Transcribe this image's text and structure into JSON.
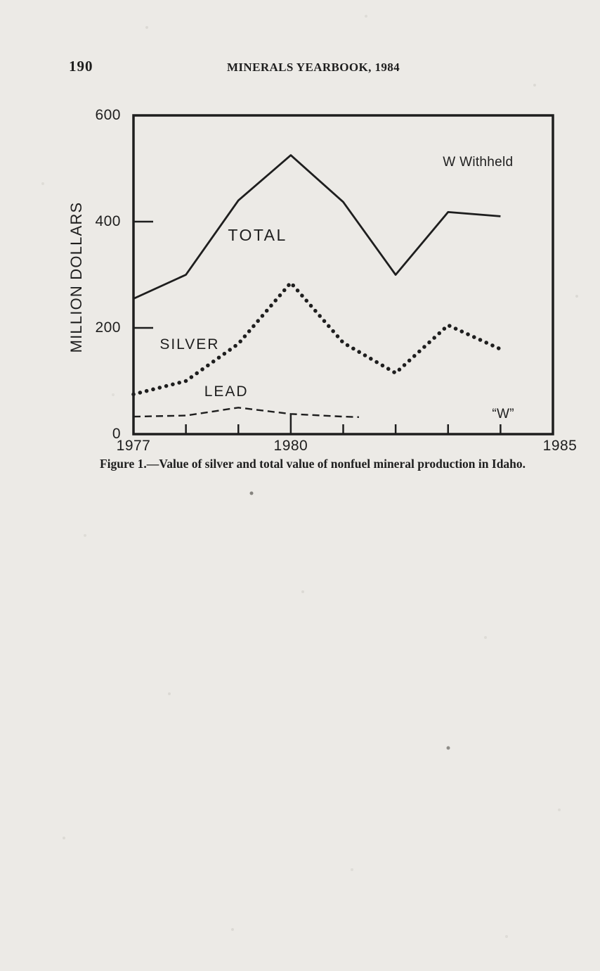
{
  "page": {
    "page_number": "190",
    "header_title": "MINERALS YEARBOOK, 1984",
    "caption": "Figure 1.—Value of silver and total value of nonfuel mineral production in Idaho."
  },
  "chart_data": {
    "type": "line",
    "title": "Value of silver and total value of nonfuel mineral production in Idaho",
    "xlabel": "",
    "ylabel": "MILLION DOLLARS",
    "xlim": [
      1977,
      1985
    ],
    "ylim": [
      0,
      600
    ],
    "grid": false,
    "legend_position": "none",
    "ink_color": "#1e1e1e",
    "x_tick_labels": [
      {
        "x": 1977,
        "label": "1977",
        "dx": 0
      },
      {
        "x": 1980,
        "label": "1980",
        "dx": 0
      },
      {
        "x": 1985,
        "label": "1985",
        "dx": 10
      }
    ],
    "x_minor_ticks": [
      1978,
      1979,
      1980,
      1981,
      1982,
      1983,
      1984
    ],
    "y_tick_labels": [
      {
        "y": 0,
        "label": "0"
      },
      {
        "y": 200,
        "label": "200"
      },
      {
        "y": 400,
        "label": "400"
      },
      {
        "y": 600,
        "label": "600"
      }
    ],
    "y_inner_ticks": [
      200,
      400
    ],
    "series": [
      {
        "name": "TOTAL",
        "style": "solid",
        "x": [
          1977,
          1978,
          1979,
          1980,
          1981,
          1982,
          1983,
          1984
        ],
        "values": [
          255,
          300,
          440,
          525,
          437,
          300,
          418,
          410
        ]
      },
      {
        "name": "SILVER",
        "style": "dotted",
        "x": [
          1977,
          1978,
          1979,
          1980,
          1981,
          1982,
          1983,
          1984
        ],
        "values": [
          75,
          100,
          170,
          285,
          172,
          115,
          205,
          160
        ]
      },
      {
        "name": "LEAD",
        "style": "dashed",
        "x": [
          1977,
          1978,
          1979,
          1980,
          1981,
          1981.3
        ],
        "values": [
          33,
          35,
          50,
          38,
          33,
          32
        ],
        "note": "withheld (W) after 1981"
      }
    ],
    "annotations": [
      {
        "text": "TOTAL",
        "x": 1978.8,
        "y": 374,
        "anchor": "start",
        "fs": 23,
        "ls": 2.5
      },
      {
        "text": "SILVER",
        "x": 1977.5,
        "y": 167,
        "anchor": "start",
        "fs": 21,
        "ls": 2
      },
      {
        "text": "LEAD",
        "x": 1978.35,
        "y": 79,
        "anchor": "start",
        "fs": 21,
        "ls": 2
      },
      {
        "text": "W Withheld",
        "x": 1982.9,
        "y": 511,
        "anchor": "start",
        "fs": 19,
        "ls": 0.3
      },
      {
        "text": "“W”",
        "x": 1984.05,
        "y": 37,
        "anchor": "middle",
        "fs": 19,
        "ls": 0.3
      }
    ]
  }
}
